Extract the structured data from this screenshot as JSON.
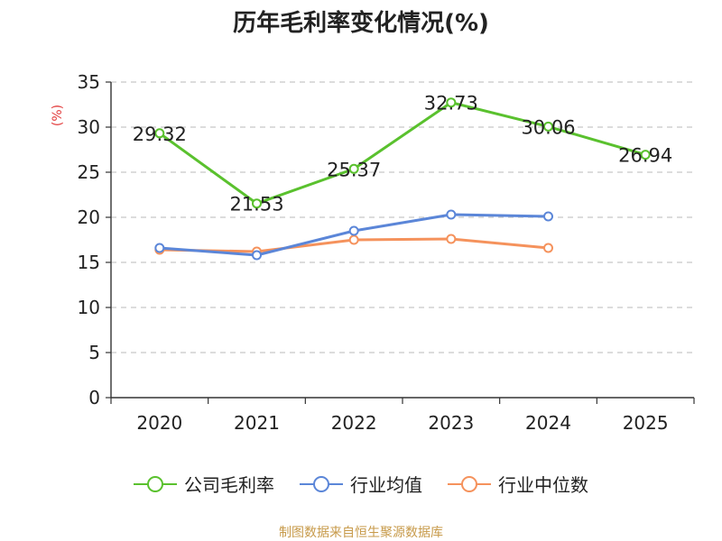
{
  "chart_data": {
    "type": "line",
    "title": "历年毛利率变化情况(%)",
    "ylabel": "(%)",
    "xlabel": "",
    "categories": [
      "2020",
      "2021",
      "2022",
      "2023",
      "2024",
      "2025"
    ],
    "ylim": [
      0,
      35
    ],
    "yticks": [
      0,
      5,
      10,
      15,
      20,
      25,
      30,
      35
    ],
    "grid": true,
    "legend_position": "bottom",
    "series": [
      {
        "name": "公司毛利率",
        "color": "#5ac12e",
        "values": [
          29.32,
          21.53,
          25.37,
          32.73,
          30.06,
          26.94
        ],
        "labels": [
          "29.32",
          "21.53",
          "25.37",
          "32.73",
          "30.06",
          "26.94"
        ]
      },
      {
        "name": "行业均值",
        "color": "#5b86d8",
        "values": [
          16.6,
          15.8,
          18.5,
          20.3,
          20.1,
          null
        ]
      },
      {
        "name": "行业中位数",
        "color": "#f5925c",
        "values": [
          16.4,
          16.2,
          17.5,
          17.6,
          16.6,
          null
        ]
      }
    ]
  },
  "source": "制图数据来自恒生聚源数据库"
}
